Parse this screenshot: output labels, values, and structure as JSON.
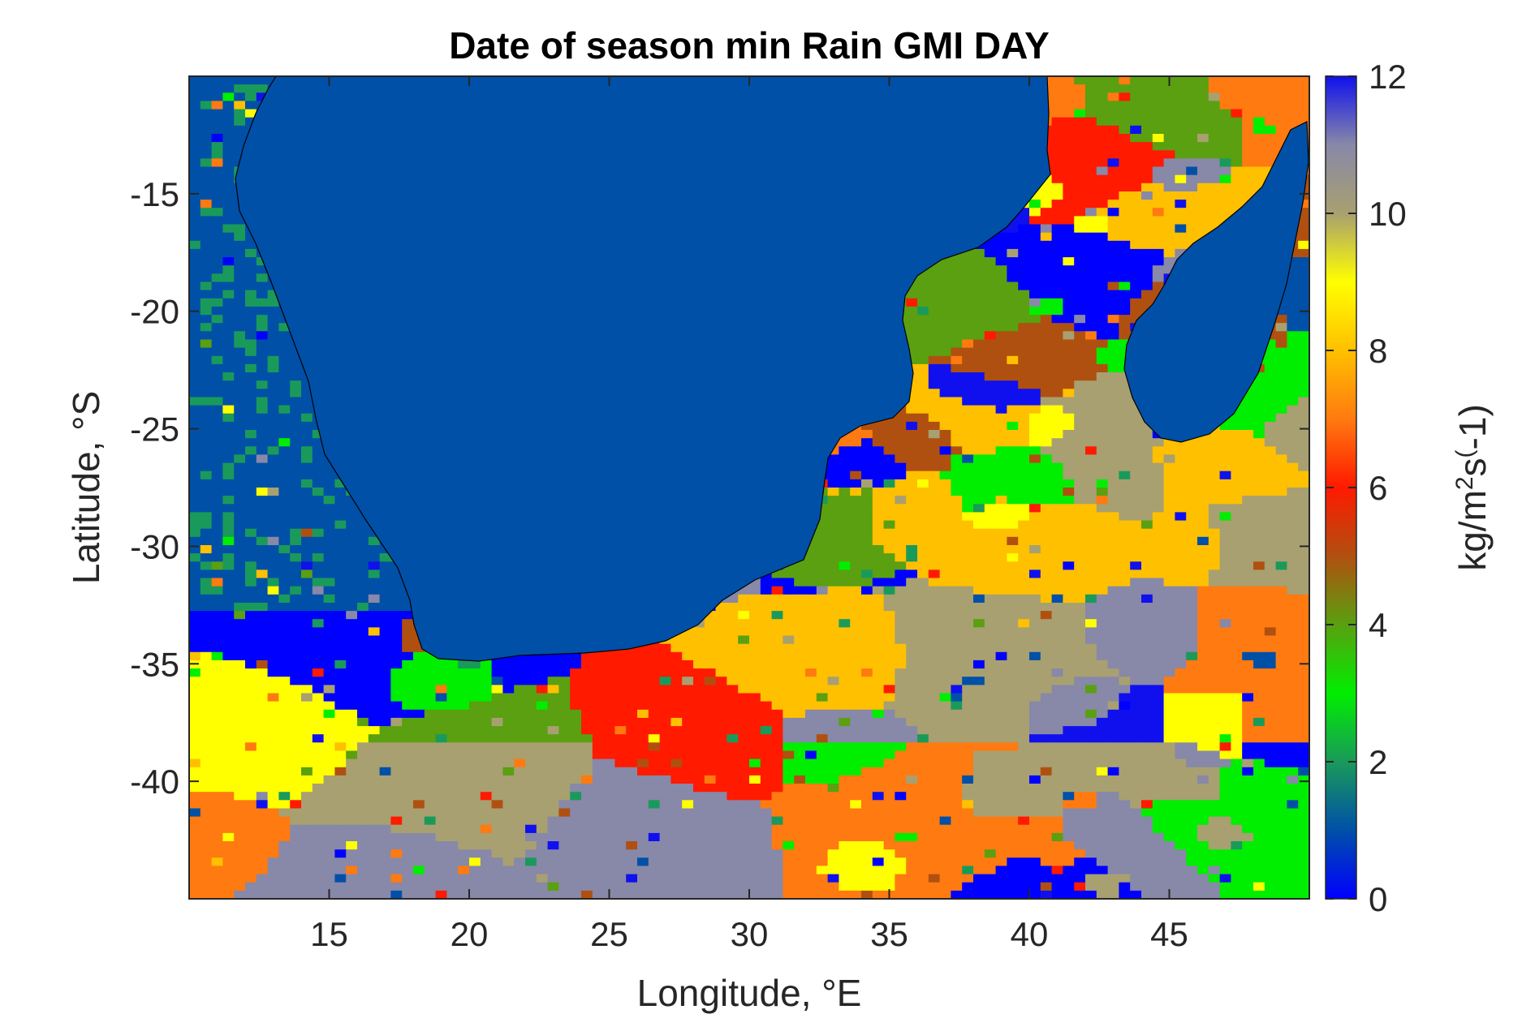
{
  "title": "Date of season min Rain GMI DAY",
  "map_data": {
    "type": "gridded-map",
    "region": "Southern Africa and adjacent oceans",
    "xlabel": "Longitude, °E",
    "ylabel": "Latitude, °S",
    "xlim": [
      10,
      50
    ],
    "ylim": [
      -45,
      -10
    ],
    "xticks": [
      15,
      20,
      25,
      30,
      35,
      40,
      45
    ],
    "xtick_labels": [
      "15",
      "20",
      "25",
      "30",
      "35",
      "40",
      "45"
    ],
    "yticks": [
      -15,
      -20,
      -25,
      -30,
      -35,
      -40
    ],
    "ytick_labels": [
      "-15",
      "-20",
      "-25",
      "-30",
      "-35",
      "-40"
    ],
    "land_color": "#0050a8",
    "coastline_color": "#000000"
  },
  "colorbar": {
    "label": "kg/m²s(-1)",
    "label_parts": {
      "base": "kg/m",
      "sup1": "2",
      "mid": "s",
      "sup2": "(",
      "tail": "-1)"
    },
    "min": 0,
    "max": 12,
    "ticks": [
      0,
      2,
      4,
      6,
      8,
      10,
      12
    ],
    "tick_labels": [
      "0",
      "2",
      "4",
      "6",
      "8",
      "10",
      "12"
    ],
    "colormap_stops": [
      {
        "value": 0,
        "color": "#0000ff"
      },
      {
        "value": 1,
        "color": "#0050a8"
      },
      {
        "value": 2,
        "color": "#1a9a5a"
      },
      {
        "value": 3,
        "color": "#00ee00"
      },
      {
        "value": 4,
        "color": "#5aa010"
      },
      {
        "value": 5,
        "color": "#b05010"
      },
      {
        "value": 6,
        "color": "#ff1a00"
      },
      {
        "value": 7,
        "color": "#ff7a10"
      },
      {
        "value": 8,
        "color": "#ffc000"
      },
      {
        "value": 9,
        "color": "#ffff00"
      },
      {
        "value": 10,
        "color": "#a8a070"
      },
      {
        "value": 11,
        "color": "#8888a8"
      },
      {
        "value": 12,
        "color": "#1010ee"
      }
    ]
  }
}
